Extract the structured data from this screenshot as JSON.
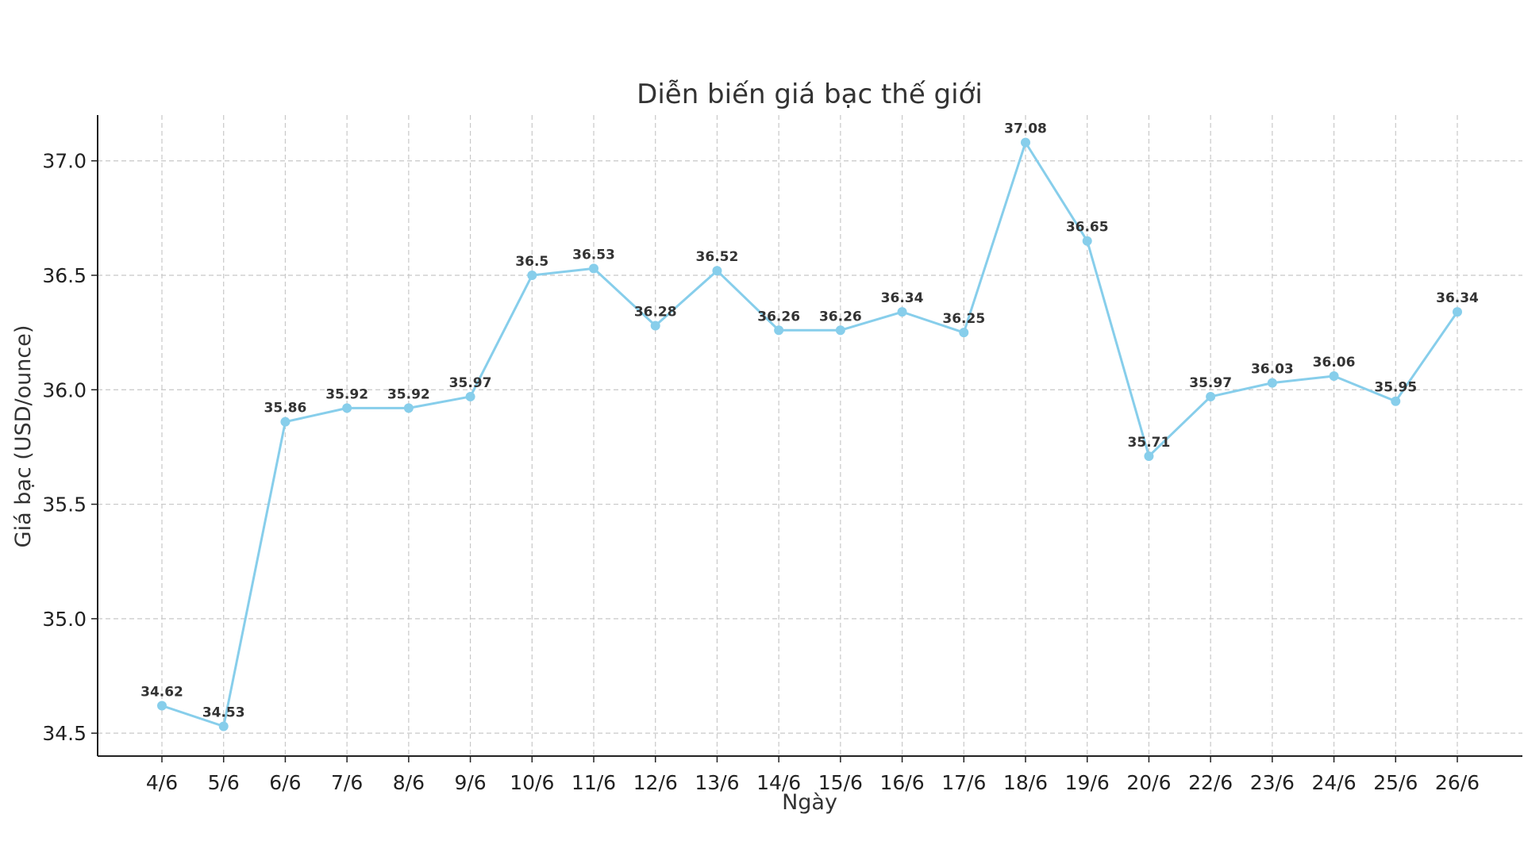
{
  "chart_data": {
    "type": "line",
    "title": "Diễn biến giá bạc thế giới",
    "xlabel": "Ngày",
    "ylabel": "Giá bạc (USD/ounce)",
    "categories": [
      "4/6",
      "5/6",
      "6/6",
      "7/6",
      "8/6",
      "9/6",
      "10/6",
      "11/6",
      "12/6",
      "13/6",
      "14/6",
      "15/6",
      "16/6",
      "17/6",
      "18/6",
      "19/6",
      "20/6",
      "22/6",
      "23/6",
      "24/6",
      "25/6",
      "26/6"
    ],
    "series": [
      {
        "values": [
          34.62,
          34.53,
          35.86,
          35.92,
          35.92,
          35.97,
          36.5,
          36.53,
          36.28,
          36.52,
          36.26,
          36.26,
          36.34,
          36.25,
          37.08,
          36.65,
          35.71,
          35.97,
          36.03,
          36.06,
          35.95,
          36.34
        ],
        "data_labels": [
          "34.62",
          "34.53",
          "35.86",
          "35.92",
          "35.92",
          "35.97",
          "36.5",
          "36.53",
          "36.28",
          "36.52",
          "36.26",
          "36.26",
          "36.34",
          "36.25",
          "37.08",
          "36.65",
          "35.71",
          "35.97",
          "36.03",
          "36.06",
          "35.95",
          "36.34"
        ],
        "color": "#87CEEB",
        "marker": "circle"
      }
    ],
    "yticks": [
      "34.5",
      "35.0",
      "35.5",
      "36.0",
      "36.5",
      "37.0"
    ],
    "ytick_values": [
      34.5,
      35.0,
      35.5,
      36.0,
      36.5,
      37.0
    ],
    "ylim": [
      34.4,
      37.2
    ],
    "grid": true,
    "legend": "none"
  }
}
